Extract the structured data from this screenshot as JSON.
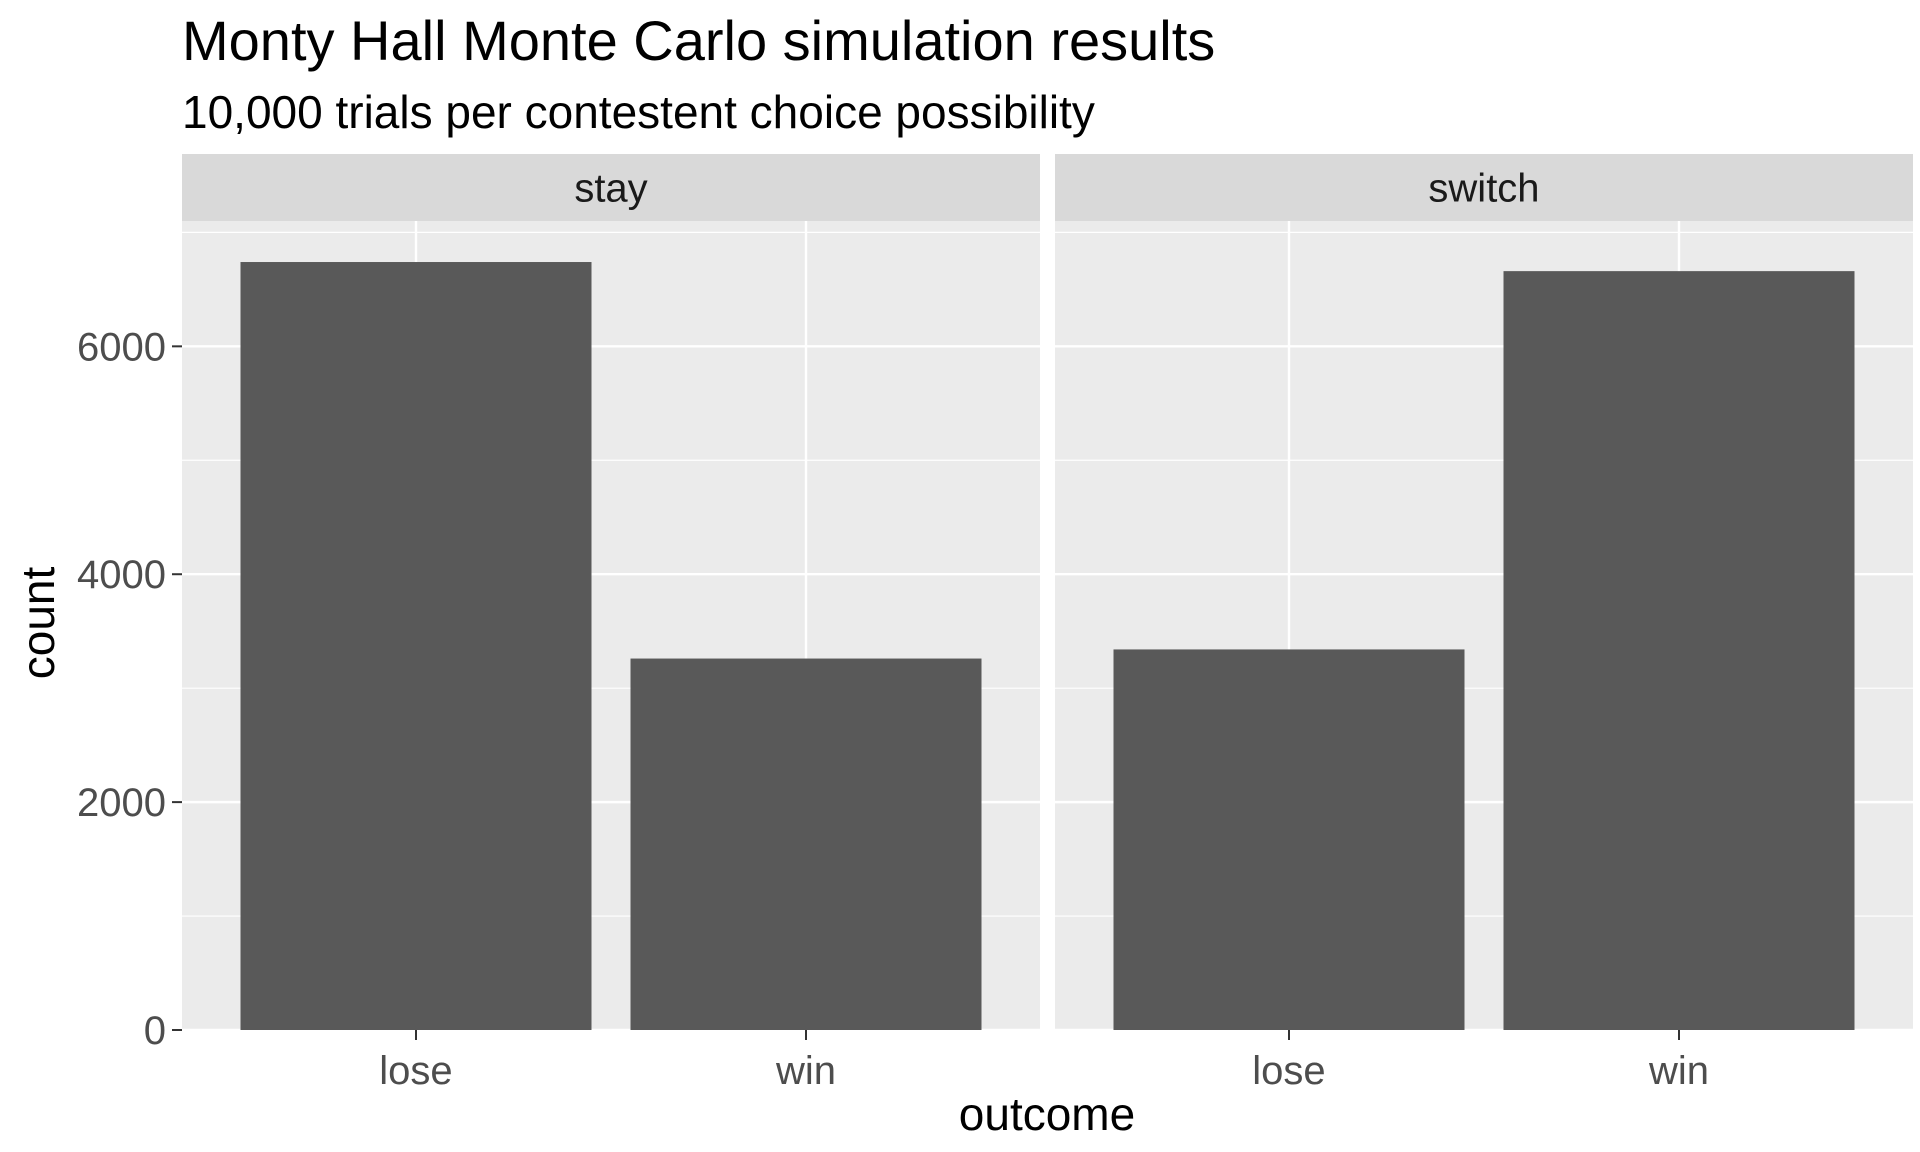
{
  "chart_data": {
    "type": "bar",
    "title": "Monty Hall Monte Carlo simulation results",
    "subtitle": "10,000 trials per contestent choice possibility",
    "xlabel": "outcome",
    "ylabel": "count",
    "categories": [
      "lose",
      "win"
    ],
    "ylim": [
      0,
      7100
    ],
    "yticks": [
      0,
      2000,
      4000,
      6000
    ],
    "grid": true,
    "facets": [
      {
        "label": "stay",
        "values": [
          6740,
          3260
        ]
      },
      {
        "label": "switch",
        "values": [
          3340,
          6660
        ]
      }
    ],
    "colors": {
      "bar": "#595959",
      "panel": "#ebebeb",
      "strip": "#d9d9d9",
      "grid": "#ffffff"
    }
  }
}
